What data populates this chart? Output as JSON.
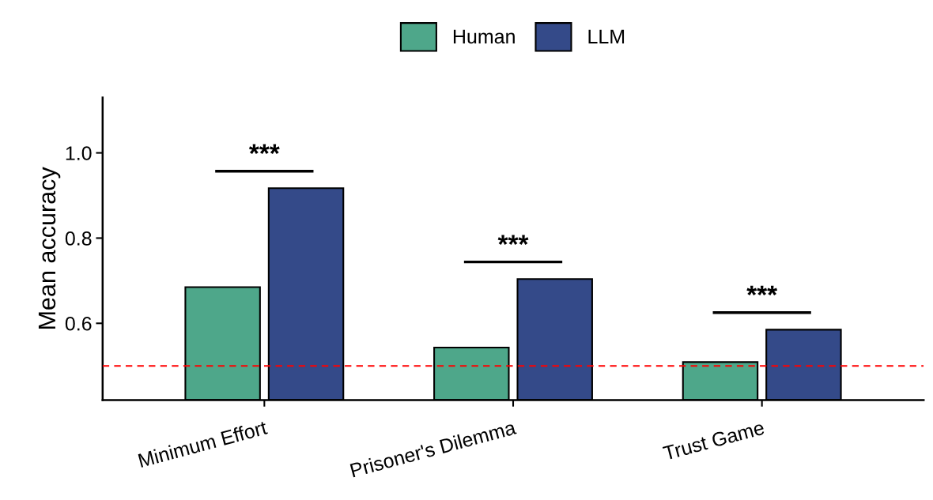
{
  "chart_data": {
    "type": "bar",
    "ylabel": "Mean accuracy",
    "categories": [
      "Minimum Effort",
      "Prisoner's Dilemma",
      "Trust Game"
    ],
    "series": [
      {
        "name": "Human",
        "color": "#4ea78a",
        "values": [
          0.685,
          0.543,
          0.509
        ]
      },
      {
        "name": "LLM",
        "color": "#344a89",
        "values": [
          0.917,
          0.704,
          0.585
        ]
      }
    ],
    "ylim": [
      0.42,
      1.13
    ],
    "yticks": [
      0.6,
      0.8,
      {
        "value": 1.0,
        "label": "1.0"
      }
    ],
    "ref_lines": [
      {
        "axis": "y",
        "value": 0.5,
        "color": "#ff0000",
        "line_style": "dashed"
      }
    ],
    "annotations": [
      "***",
      "***",
      "***"
    ],
    "legend": "top",
    "grid": false
  }
}
